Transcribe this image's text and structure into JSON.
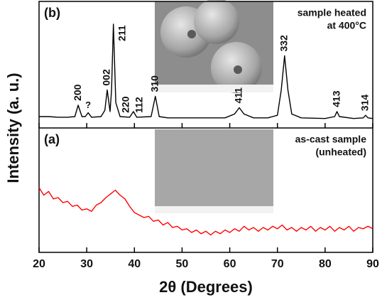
{
  "chart_data": {
    "type": "line",
    "xlabel": "2θ (Degrees)",
    "ylabel": "Intensity (a. u.)",
    "xlim": [
      20,
      90
    ],
    "xticks": [
      20,
      30,
      40,
      50,
      60,
      70,
      80,
      90
    ],
    "panels": [
      {
        "label": "(b)",
        "annotation": [
          "sample heated",
          "at 400°C"
        ],
        "color": "#000000",
        "ylim": [
          0,
          100
        ],
        "x": [
          20,
          22,
          24,
          26,
          27.5,
          28.2,
          29,
          29.7,
          30.3,
          31,
          33,
          33.8,
          34.3,
          34.9,
          35.2,
          35.6,
          36.1,
          37,
          39,
          39.8,
          40.5,
          43.5,
          44.4,
          45.2,
          47,
          50,
          55,
          59,
          61,
          62,
          63,
          65,
          68,
          70,
          70.8,
          71.5,
          72.2,
          73,
          75,
          80,
          82,
          82.5,
          83,
          86,
          88,
          88.5,
          89,
          90
        ],
        "values": [
          9,
          9,
          8.5,
          8.5,
          9,
          18,
          9,
          9,
          12,
          8.5,
          9,
          14,
          30,
          13,
          30,
          82,
          20,
          9,
          8.5,
          13,
          8.5,
          9,
          25,
          9,
          8,
          8,
          8,
          8,
          11,
          16,
          11,
          8,
          8,
          10,
          30,
          57,
          30,
          11,
          8,
          7.5,
          9,
          13,
          9,
          7.5,
          8,
          10,
          8,
          7.5
        ],
        "peaks": [
          {
            "x": 28.2,
            "label": "200"
          },
          {
            "x": 30.3,
            "label": "?"
          },
          {
            "x": 34.3,
            "label": "002"
          },
          {
            "x": 35.6,
            "label": "211"
          },
          {
            "x": 38.3,
            "label": "220"
          },
          {
            "x": 41.1,
            "label": "112"
          },
          {
            "x": 44.4,
            "label": "310"
          },
          {
            "x": 62,
            "label": "411"
          },
          {
            "x": 71.5,
            "label": "332"
          },
          {
            "x": 82.5,
            "label": "413"
          },
          {
            "x": 88.5,
            "label": "314"
          }
        ]
      },
      {
        "label": "(a)",
        "annotation": [
          "as-cast sample",
          "(unheated)"
        ],
        "color": "#ff0000",
        "ylim": [
          0,
          100
        ],
        "x": [
          20,
          21,
          22,
          23,
          24,
          25,
          26,
          27,
          28,
          29,
          30,
          31,
          32,
          33,
          34,
          35,
          36,
          37,
          38,
          39,
          40,
          41,
          42,
          43,
          44,
          45,
          46,
          47,
          48,
          49,
          50,
          51,
          52,
          53,
          54,
          55,
          56,
          57,
          58,
          59,
          60,
          61,
          62,
          63,
          64,
          65,
          66,
          67,
          68,
          69,
          70,
          71,
          72,
          73,
          74,
          75,
          76,
          77,
          78,
          79,
          80,
          81,
          82,
          83,
          84,
          85,
          86,
          87,
          88,
          89,
          90
        ],
        "values": [
          52,
          46,
          49,
          43,
          44,
          40,
          41,
          37,
          38,
          34,
          35,
          33,
          38,
          40,
          44,
          47,
          50,
          46,
          43,
          37,
          32,
          30,
          28,
          29,
          25,
          26,
          22,
          24,
          20,
          21,
          18,
          19,
          16,
          18,
          15,
          17,
          14,
          17,
          15,
          18,
          16,
          19,
          17,
          21,
          18,
          20,
          17,
          20,
          18,
          21,
          19,
          22,
          18,
          20,
          17,
          20,
          18,
          21,
          17,
          20,
          18,
          21,
          17,
          20,
          18,
          21,
          17,
          20,
          19,
          21,
          19
        ]
      }
    ]
  }
}
